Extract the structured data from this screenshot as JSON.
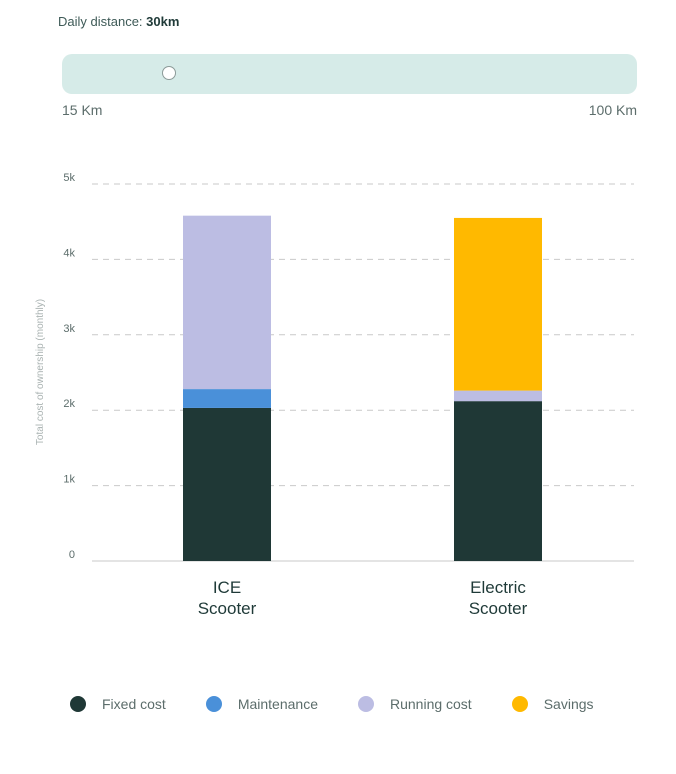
{
  "slider": {
    "label": "Daily distance:",
    "value_text": "30km",
    "min_label": "15 Km",
    "max_label": "100 Km",
    "min": 15,
    "max": 100,
    "value": 30
  },
  "chart_data": {
    "type": "bar",
    "stacked": true,
    "ylabel": "Total cost of ownership (monthly)",
    "ylim": [
      0,
      5000
    ],
    "yticks": [
      0,
      1000,
      2000,
      3000,
      4000,
      5000
    ],
    "ytick_labels": [
      "0",
      "1k",
      "2k",
      "3k",
      "4k",
      "5k"
    ],
    "grid": true,
    "categories": [
      {
        "line1": "ICE",
        "line2": "Scooter"
      },
      {
        "line1": "Electric",
        "line2": "Scooter"
      }
    ],
    "series": [
      {
        "name": "Fixed cost",
        "color": "#1f3836",
        "values": [
          2030,
          2120
        ]
      },
      {
        "name": "Maintenance",
        "color": "#4a90d9",
        "values": [
          250,
          0
        ]
      },
      {
        "name": "Running cost",
        "color": "#bcbde3",
        "values": [
          2300,
          140
        ]
      },
      {
        "name": "Savings",
        "color": "#ffb900",
        "values": [
          0,
          2290
        ]
      }
    ],
    "legend_position": "bottom"
  }
}
